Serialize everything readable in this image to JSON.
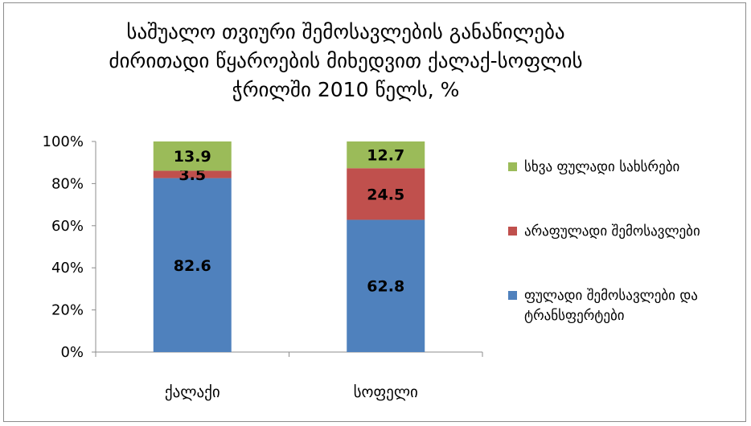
{
  "chart_data": {
    "type": "bar",
    "stacked": true,
    "title_lines": [
      "საშუალო თვიური შემოსავლების განაწილება",
      "ძირითადი წყაროების მიხედვით ქალაქ-სოფლის",
      "ჭრილში 2010 წელს, %"
    ],
    "categories": [
      "ქალაქი",
      "სოფელი"
    ],
    "series": [
      {
        "name": "ფულადი შემოსავლები და ტრანსფერტები",
        "values": [
          82.6,
          62.8
        ],
        "color": "#4f81bd"
      },
      {
        "name": "არაფულადი შემოსავლები",
        "values": [
          3.5,
          24.5
        ],
        "color": "#c0504d"
      },
      {
        "name": "სხვა ფულადი სახსრები",
        "values": [
          13.9,
          12.7
        ],
        "color": "#9bbb59"
      }
    ],
    "y_ticks": [
      "0%",
      "20%",
      "40%",
      "60%",
      "80%",
      "100%"
    ],
    "ylim": [
      0,
      100
    ],
    "legend_position": "right",
    "grid": false
  }
}
